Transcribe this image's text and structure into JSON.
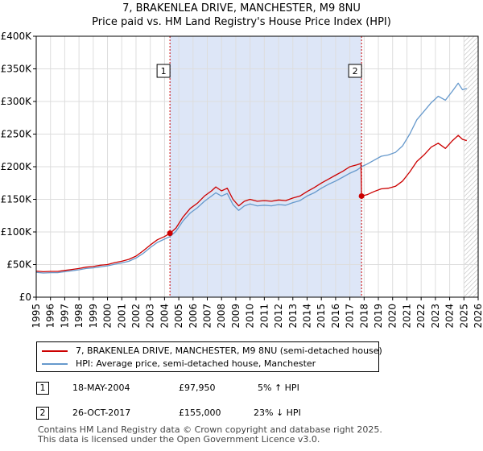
{
  "chart_data": {
    "type": "line",
    "title": "7, BRAKENLEA DRIVE, MANCHESTER, M9 8NU",
    "subtitle": "Price paid vs. HM Land Registry's House Price Index (HPI)",
    "xlim": [
      1995,
      2026
    ],
    "ylim": [
      0,
      400000
    ],
    "x_ticks": [
      "1995",
      "1996",
      "1997",
      "1998",
      "1999",
      "2000",
      "2001",
      "2002",
      "2003",
      "2004",
      "2005",
      "2006",
      "2007",
      "2008",
      "2009",
      "2010",
      "2011",
      "2012",
      "2013",
      "2014",
      "2015",
      "2016",
      "2017",
      "2018",
      "2019",
      "2020",
      "2021",
      "2022",
      "2023",
      "2024",
      "2025",
      "2026"
    ],
    "y_ticks": [
      {
        "value": 0,
        "label": "£0"
      },
      {
        "value": 50000,
        "label": "£50K"
      },
      {
        "value": 100000,
        "label": "£100K"
      },
      {
        "value": 150000,
        "label": "£150K"
      },
      {
        "value": 200000,
        "label": "£200K"
      },
      {
        "value": 250000,
        "label": "£250K"
      },
      {
        "value": 300000,
        "label": "£300K"
      },
      {
        "value": 350000,
        "label": "£350K"
      },
      {
        "value": 400000,
        "label": "£400K"
      }
    ],
    "shaded_period": [
      2004.38,
      2017.82
    ],
    "hatched_from": 2025.0,
    "colors": {
      "property": "#cc0000",
      "hpi": "#6699cc",
      "shade": "#dde6f7",
      "grid": "#dddddd",
      "marker_line": "#cc0000"
    },
    "series": [
      {
        "name": "7, BRAKENLEA DRIVE, MANCHESTER, M9 8NU (semi-detached house)",
        "x": [
          1995,
          1995.5,
          1996,
          1996.5,
          1997,
          1997.5,
          1998,
          1998.5,
          1999,
          1999.5,
          2000,
          2000.5,
          2001,
          2001.5,
          2002,
          2002.5,
          2003,
          2003.5,
          2004,
          2004.38,
          2004.8,
          2005.3,
          2005.8,
          2006.3,
          2006.8,
          2007.3,
          2007.6,
          2008,
          2008.4,
          2008.8,
          2009.2,
          2009.6,
          2010,
          2010.5,
          2011,
          2011.5,
          2012,
          2012.5,
          2013,
          2013.5,
          2014,
          2014.5,
          2015,
          2015.5,
          2016,
          2016.5,
          2017,
          2017.5,
          2017.78,
          2017.82,
          2018.2,
          2018.7,
          2019.2,
          2019.7,
          2020.2,
          2020.7,
          2021.2,
          2021.7,
          2022.2,
          2022.7,
          2023.2,
          2023.7,
          2024.2,
          2024.6,
          2024.9,
          2025.2
        ],
        "values": [
          40000,
          39000,
          39500,
          39500,
          41000,
          42500,
          44000,
          46000,
          47000,
          49000,
          50000,
          53000,
          55000,
          58000,
          63000,
          71000,
          80000,
          88000,
          93000,
          97950,
          106000,
          123000,
          136000,
          144000,
          155000,
          163000,
          169000,
          163000,
          167000,
          150000,
          140000,
          147000,
          150000,
          147000,
          148000,
          147000,
          149000,
          148000,
          152000,
          155000,
          162000,
          168000,
          175000,
          181000,
          187000,
          193000,
          200000,
          203000,
          205000,
          155000,
          157000,
          162000,
          166000,
          167000,
          170000,
          178000,
          192000,
          208000,
          218000,
          230000,
          236000,
          228000,
          240000,
          248000,
          242000,
          240000
        ]
      },
      {
        "name": "HPI: Average price, semi-detached house, Manchester",
        "x": [
          1995,
          1995.5,
          1996,
          1996.5,
          1997,
          1997.5,
          1998,
          1998.5,
          1999,
          1999.5,
          2000,
          2000.5,
          2001,
          2001.5,
          2002,
          2002.5,
          2003,
          2003.5,
          2004,
          2004.38,
          2004.8,
          2005.3,
          2005.8,
          2006.3,
          2006.8,
          2007.3,
          2007.6,
          2008,
          2008.4,
          2008.8,
          2009.2,
          2009.6,
          2010,
          2010.5,
          2011,
          2011.5,
          2012,
          2012.5,
          2013,
          2013.5,
          2014,
          2014.5,
          2015,
          2015.5,
          2016,
          2016.5,
          2017,
          2017.5,
          2017.82,
          2018.2,
          2018.7,
          2019.2,
          2019.7,
          2020.2,
          2020.7,
          2021.2,
          2021.7,
          2022.2,
          2022.7,
          2023.2,
          2023.7,
          2024.2,
          2024.6,
          2024.9,
          2025.2
        ],
        "values": [
          38000,
          37000,
          37500,
          37500,
          39000,
          40500,
          42000,
          44000,
          45000,
          46500,
          48000,
          50500,
          52500,
          55000,
          60000,
          67000,
          76000,
          84000,
          89000,
          93000,
          101000,
          117000,
          129000,
          137000,
          147000,
          155000,
          160000,
          155000,
          159000,
          142000,
          133000,
          140000,
          143000,
          140000,
          141000,
          140000,
          142000,
          141000,
          145000,
          148000,
          155000,
          160000,
          167000,
          173000,
          178000,
          184000,
          190000,
          195000,
          200000,
          204000,
          210000,
          216000,
          218000,
          222000,
          232000,
          250000,
          272000,
          285000,
          298000,
          308000,
          302000,
          316000,
          328000,
          318000,
          320000
        ]
      }
    ],
    "sales": [
      {
        "id": "1",
        "x": 2004.38,
        "value": 97950,
        "date": "18-MAY-2004",
        "price": "£97,950",
        "hpi": "5% ↑ HPI"
      },
      {
        "id": "2",
        "x": 2017.82,
        "value": 155000,
        "date": "26-OCT-2017",
        "price": "£155,000",
        "hpi": "23% ↓ HPI"
      }
    ]
  },
  "legend": {
    "property_label": "7, BRAKENLEA DRIVE, MANCHESTER, M9 8NU (semi-detached house)",
    "hpi_label": "HPI: Average price, semi-detached house, Manchester"
  },
  "footer": {
    "line1": "Contains HM Land Registry data © Crown copyright and database right 2025.",
    "line2": "This data is licensed under the Open Government Licence v3.0."
  }
}
